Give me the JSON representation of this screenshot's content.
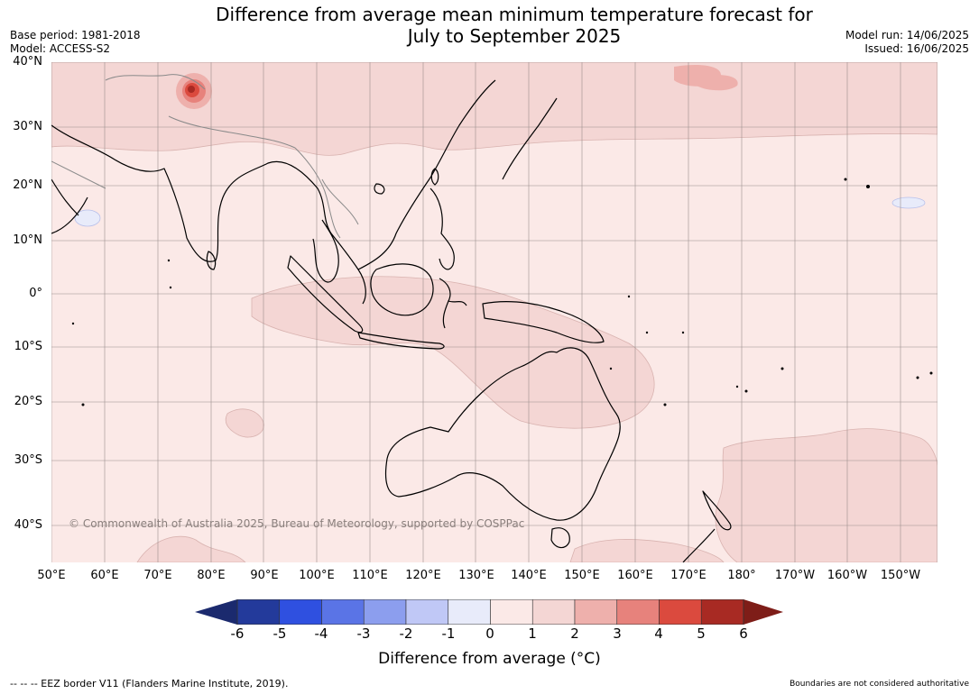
{
  "title_line1": "Difference from average mean minimum temperature forecast for",
  "title_line2": "July to September 2025",
  "meta_left": {
    "base_period": "Base period: 1981-2018",
    "model": "Model: ACCESS-S2"
  },
  "meta_right": {
    "model_run": "Model run: 14/06/2025",
    "issued": "Issued: 16/06/2025"
  },
  "lat_labels": [
    "40°N",
    "30°N",
    "20°N",
    "10°N",
    "0°",
    "10°S",
    "20°S",
    "30°S",
    "40°S"
  ],
  "lon_labels": [
    "50°E",
    "60°E",
    "70°E",
    "80°E",
    "90°E",
    "100°E",
    "110°E",
    "120°E",
    "130°E",
    "140°E",
    "150°E",
    "160°E",
    "170°E",
    "180°",
    "170°W",
    "160°W",
    "150°W"
  ],
  "copyright": "© Commonwealth of Australia 2025, Bureau of Meteorology, supported by COSPPac",
  "colorbar": {
    "ticks": [
      "-6",
      "-5",
      "-4",
      "-3",
      "-2",
      "-1",
      "0",
      "1",
      "2",
      "3",
      "4",
      "5",
      "6"
    ],
    "colors": [
      "#233a9b",
      "#2f50e0",
      "#5a74e6",
      "#8c9eee",
      "#c0c8f6",
      "#e8ebfa",
      "#fbe9e7",
      "#f4d6d4",
      "#eeb0ac",
      "#e7827c",
      "#db4a3e",
      "#a82a23"
    ],
    "under_color": "#1b2a6e",
    "over_color": "#7e1d18",
    "title": "Difference from average (°C)"
  },
  "footer_left": "--  --  -- EEZ border V11 (Flanders Marine Institute, 2019).",
  "footer_right": "Boundaries are not considered authoritative",
  "colors": {
    "background_anomaly": "#fbe9e7",
    "land_outline": "#000000",
    "grid": "#888888"
  }
}
